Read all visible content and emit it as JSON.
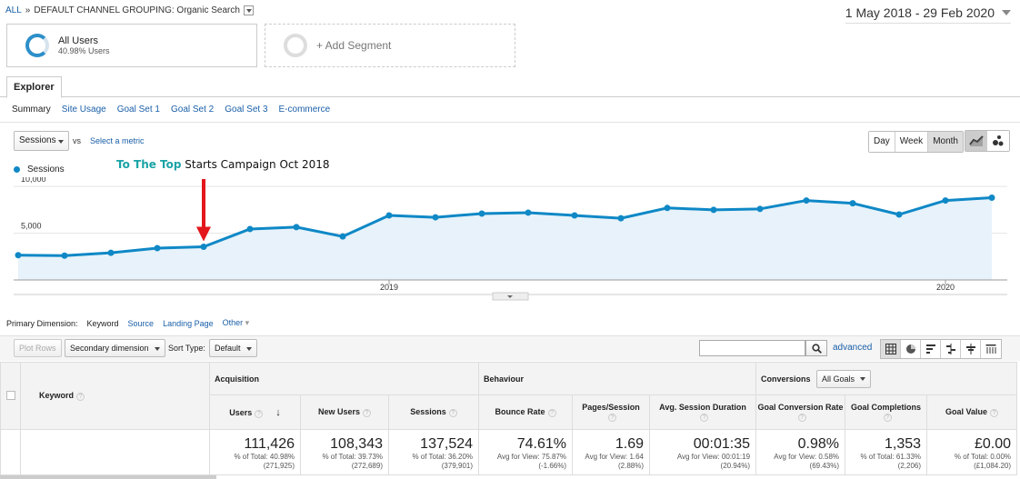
{
  "breadcrumb": {
    "all": "ALL",
    "sep": "»",
    "grouping": "DEFAULT CHANNEL GROUPING: Organic Search"
  },
  "date_range": "1 May 2018 - 29 Feb 2020",
  "segments": {
    "active": {
      "title": "All Users",
      "subtitle": "40.98% Users"
    },
    "add": "+ Add Segment"
  },
  "tabs": {
    "explorer": "Explorer"
  },
  "subtabs": [
    "Summary",
    "Site Usage",
    "Goal Set 1",
    "Goal Set 2",
    "Goal Set 3",
    "E-commerce"
  ],
  "metric": {
    "selected": "Sessions",
    "vs": "vs",
    "select_metric": "Select a metric"
  },
  "periods": {
    "day": "Day",
    "week": "Week",
    "month": "Month",
    "active": "Month"
  },
  "annotation": {
    "highlight": "To The Top",
    "rest": " Starts Campaign Oct 2018"
  },
  "chart_data": {
    "type": "area",
    "series": [
      {
        "name": "Sessions",
        "x": [
          "May 2018",
          "Jun 2018",
          "Jul 2018",
          "Aug 2018",
          "Sep 2018",
          "Oct 2018",
          "Nov 2018",
          "Dec 2018",
          "Jan 2019",
          "Feb 2019",
          "Mar 2019",
          "Apr 2019",
          "May 2019",
          "Jun 2019",
          "Jul 2019",
          "Aug 2019",
          "Sep 2019",
          "Oct 2019",
          "Nov 2019",
          "Dec 2019",
          "Jan 2020",
          "Feb 2020"
        ],
        "values": [
          2650,
          2600,
          2900,
          3400,
          3550,
          5450,
          5650,
          4650,
          6900,
          6700,
          7100,
          7200,
          6900,
          6600,
          7700,
          7500,
          7600,
          8500,
          8200,
          7000,
          8500,
          8800
        ]
      }
    ],
    "ylim": [
      0,
      10500
    ],
    "yticks": [
      {
        "value": 5000,
        "label": "5,000"
      },
      {
        "value": 10000,
        "label": "10,000"
      }
    ],
    "xticks": [
      {
        "index": 8,
        "label": "2019"
      },
      {
        "index": 20,
        "label": "2020"
      }
    ],
    "color": "#0f88c6",
    "fill": "#e7f2fa",
    "marker_index": 4,
    "marker_color": "#e3161b",
    "grid": true
  },
  "primary_dimension": {
    "label": "Primary Dimension:",
    "current": "Keyword",
    "options": [
      "Source",
      "Landing Page",
      "Other"
    ]
  },
  "toolbar": {
    "plot_rows": "Plot Rows",
    "secondary_dimension": "Secondary dimension",
    "sort_type_label": "Sort Type:",
    "sort_type": "Default",
    "advanced": "advanced"
  },
  "table": {
    "keyword_header": "Keyword",
    "groups": {
      "acquisition": "Acquisition",
      "behaviour": "Behaviour",
      "conversions": "Conversions",
      "goal_select": "All Goals"
    },
    "columns": [
      {
        "label": "Users",
        "total": "111,426",
        "pct": "% of Total: 40.98%",
        "base": "(271,925)"
      },
      {
        "label": "New Users",
        "total": "108,343",
        "pct": "% of Total: 39.73%",
        "base": "(272,689)"
      },
      {
        "label": "Sessions",
        "total": "137,524",
        "pct": "% of Total: 36.20%",
        "base": "(379,901)"
      },
      {
        "label": "Bounce Rate",
        "total": "74.61%",
        "pct": "Avg for View: 75.87%",
        "base": "(-1.66%)"
      },
      {
        "label": "Pages/Session",
        "total": "1.69",
        "pct": "Avg for View: 1.64",
        "base": "(2.88%)"
      },
      {
        "label": "Avg. Session Duration",
        "total": "00:01:35",
        "pct": "Avg for View: 00:01:19",
        "base": "(20.94%)"
      },
      {
        "label": "Goal Conversion Rate",
        "total": "0.98%",
        "pct": "Avg for View: 0.58%",
        "base": "(69.43%)"
      },
      {
        "label": "Goal Completions",
        "total": "1,353",
        "pct": "% of Total: 61.33%",
        "base": "(2,206)"
      },
      {
        "label": "Goal Value",
        "total": "£0.00",
        "pct": "% of Total: 0.00%",
        "base": "(£1,084.20)"
      }
    ]
  }
}
